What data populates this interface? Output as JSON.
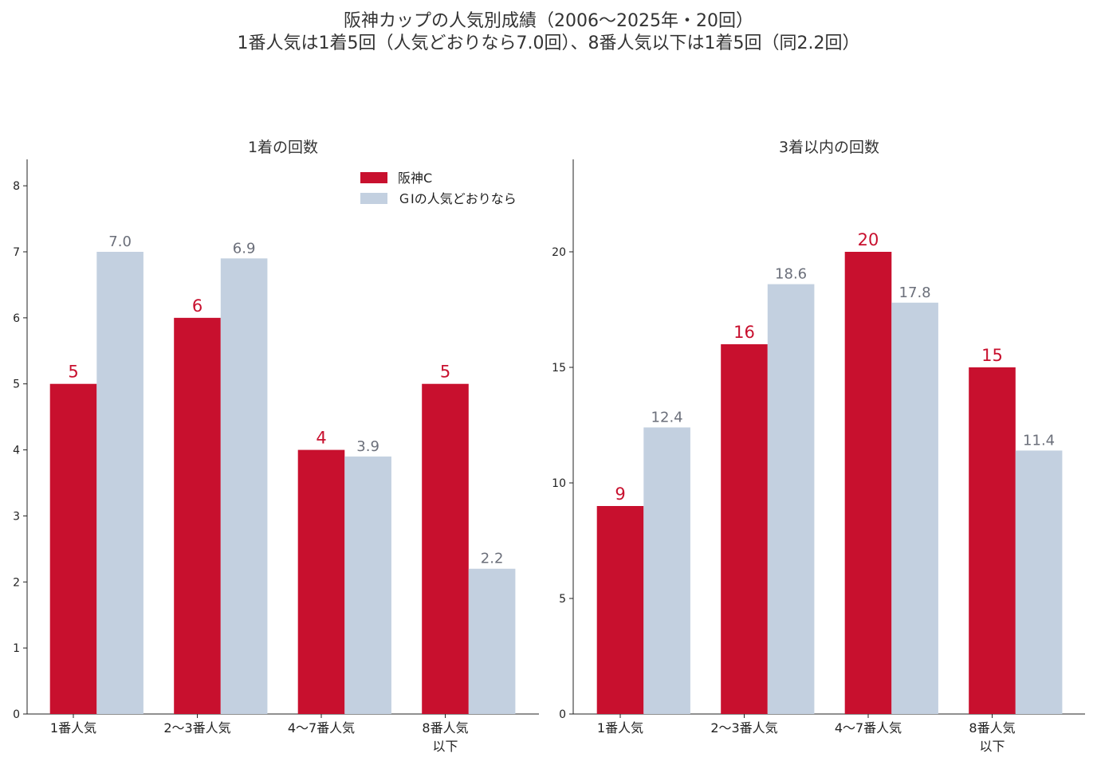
{
  "title_lines": [
    "阪神カップの人気別成績（2006〜2025年・20回）",
    "1番人気は1着5回（人気どおりなら7.0回）、8番人気以下は1着5回（同2.2回）"
  ],
  "colors": {
    "series_a": "#c8102e",
    "series_b": "#c3d0e0",
    "label_b": "#6b6f7a",
    "axis": "#222222"
  },
  "legend": [
    "阪神C",
    "ＧⅠの人気どおりなら"
  ],
  "chart_data": [
    {
      "type": "bar",
      "title": "1着の回数",
      "categories": [
        "1番人気",
        "2〜3番人気",
        "4〜7番人気",
        "8番人気\n以下"
      ],
      "series": [
        {
          "name": "阪神C",
          "values": [
            5,
            6,
            4,
            5
          ],
          "labels": [
            "5",
            "6",
            "4",
            "5"
          ]
        },
        {
          "name": "ＧⅠの人気どおりなら",
          "values": [
            7.0,
            6.9,
            3.9,
            2.2
          ],
          "labels": [
            "7.0",
            "6.9",
            "3.9",
            "2.2"
          ]
        }
      ],
      "ylim": [
        0,
        8.4
      ],
      "yticks": [
        0,
        1,
        2,
        3,
        4,
        5,
        6,
        7,
        8
      ],
      "legend_position": "top-right",
      "grid": false
    },
    {
      "type": "bar",
      "title": "3着以内の回数",
      "categories": [
        "1番人気",
        "2〜3番人気",
        "4〜7番人気",
        "8番人気\n以下"
      ],
      "series": [
        {
          "name": "阪神C",
          "values": [
            9,
            16,
            20,
            15
          ],
          "labels": [
            "9",
            "16",
            "20",
            "15"
          ]
        },
        {
          "name": "ＧⅠの人気どおりなら",
          "values": [
            12.4,
            18.6,
            17.8,
            11.4
          ],
          "labels": [
            "12.4",
            "18.6",
            "17.8",
            "11.4"
          ]
        }
      ],
      "ylim": [
        0,
        24
      ],
      "yticks": [
        0,
        5,
        10,
        15,
        20
      ],
      "grid": false
    }
  ]
}
